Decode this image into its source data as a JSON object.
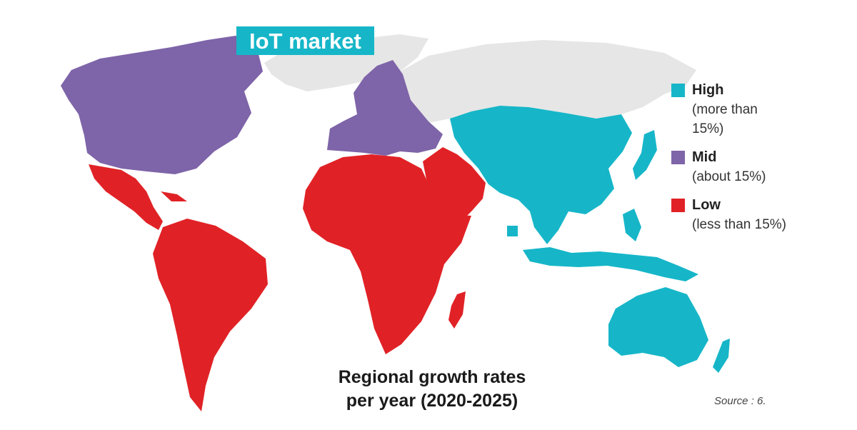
{
  "title": "IoT market",
  "colors": {
    "high": "#16b6c8",
    "mid": "#7e64a8",
    "low": "#e02226",
    "no_data": "#e6e6e6",
    "title_bg": "#16b6c8"
  },
  "legend": [
    {
      "key": "high",
      "label": "High",
      "description": "(more than 15%)",
      "color": "#16b6c8"
    },
    {
      "key": "mid",
      "label": "Mid",
      "description": "(about 15%)",
      "color": "#7e64a8"
    },
    {
      "key": "low",
      "label": "Low",
      "description": "(less than 15%)",
      "color": "#e02226"
    }
  ],
  "caption": {
    "line1": "Regional growth rates",
    "line2": "per year (2020-2025)"
  },
  "source": "Source : 6.",
  "regions": [
    {
      "name": "North America",
      "category": "mid"
    },
    {
      "name": "Europe",
      "category": "mid"
    },
    {
      "name": "Latin America",
      "category": "low"
    },
    {
      "name": "Africa",
      "category": "low"
    },
    {
      "name": "Middle East",
      "category": "low"
    },
    {
      "name": "Asia-Pacific",
      "category": "high"
    },
    {
      "name": "Russia & Greenland",
      "category": "no_data"
    }
  ]
}
